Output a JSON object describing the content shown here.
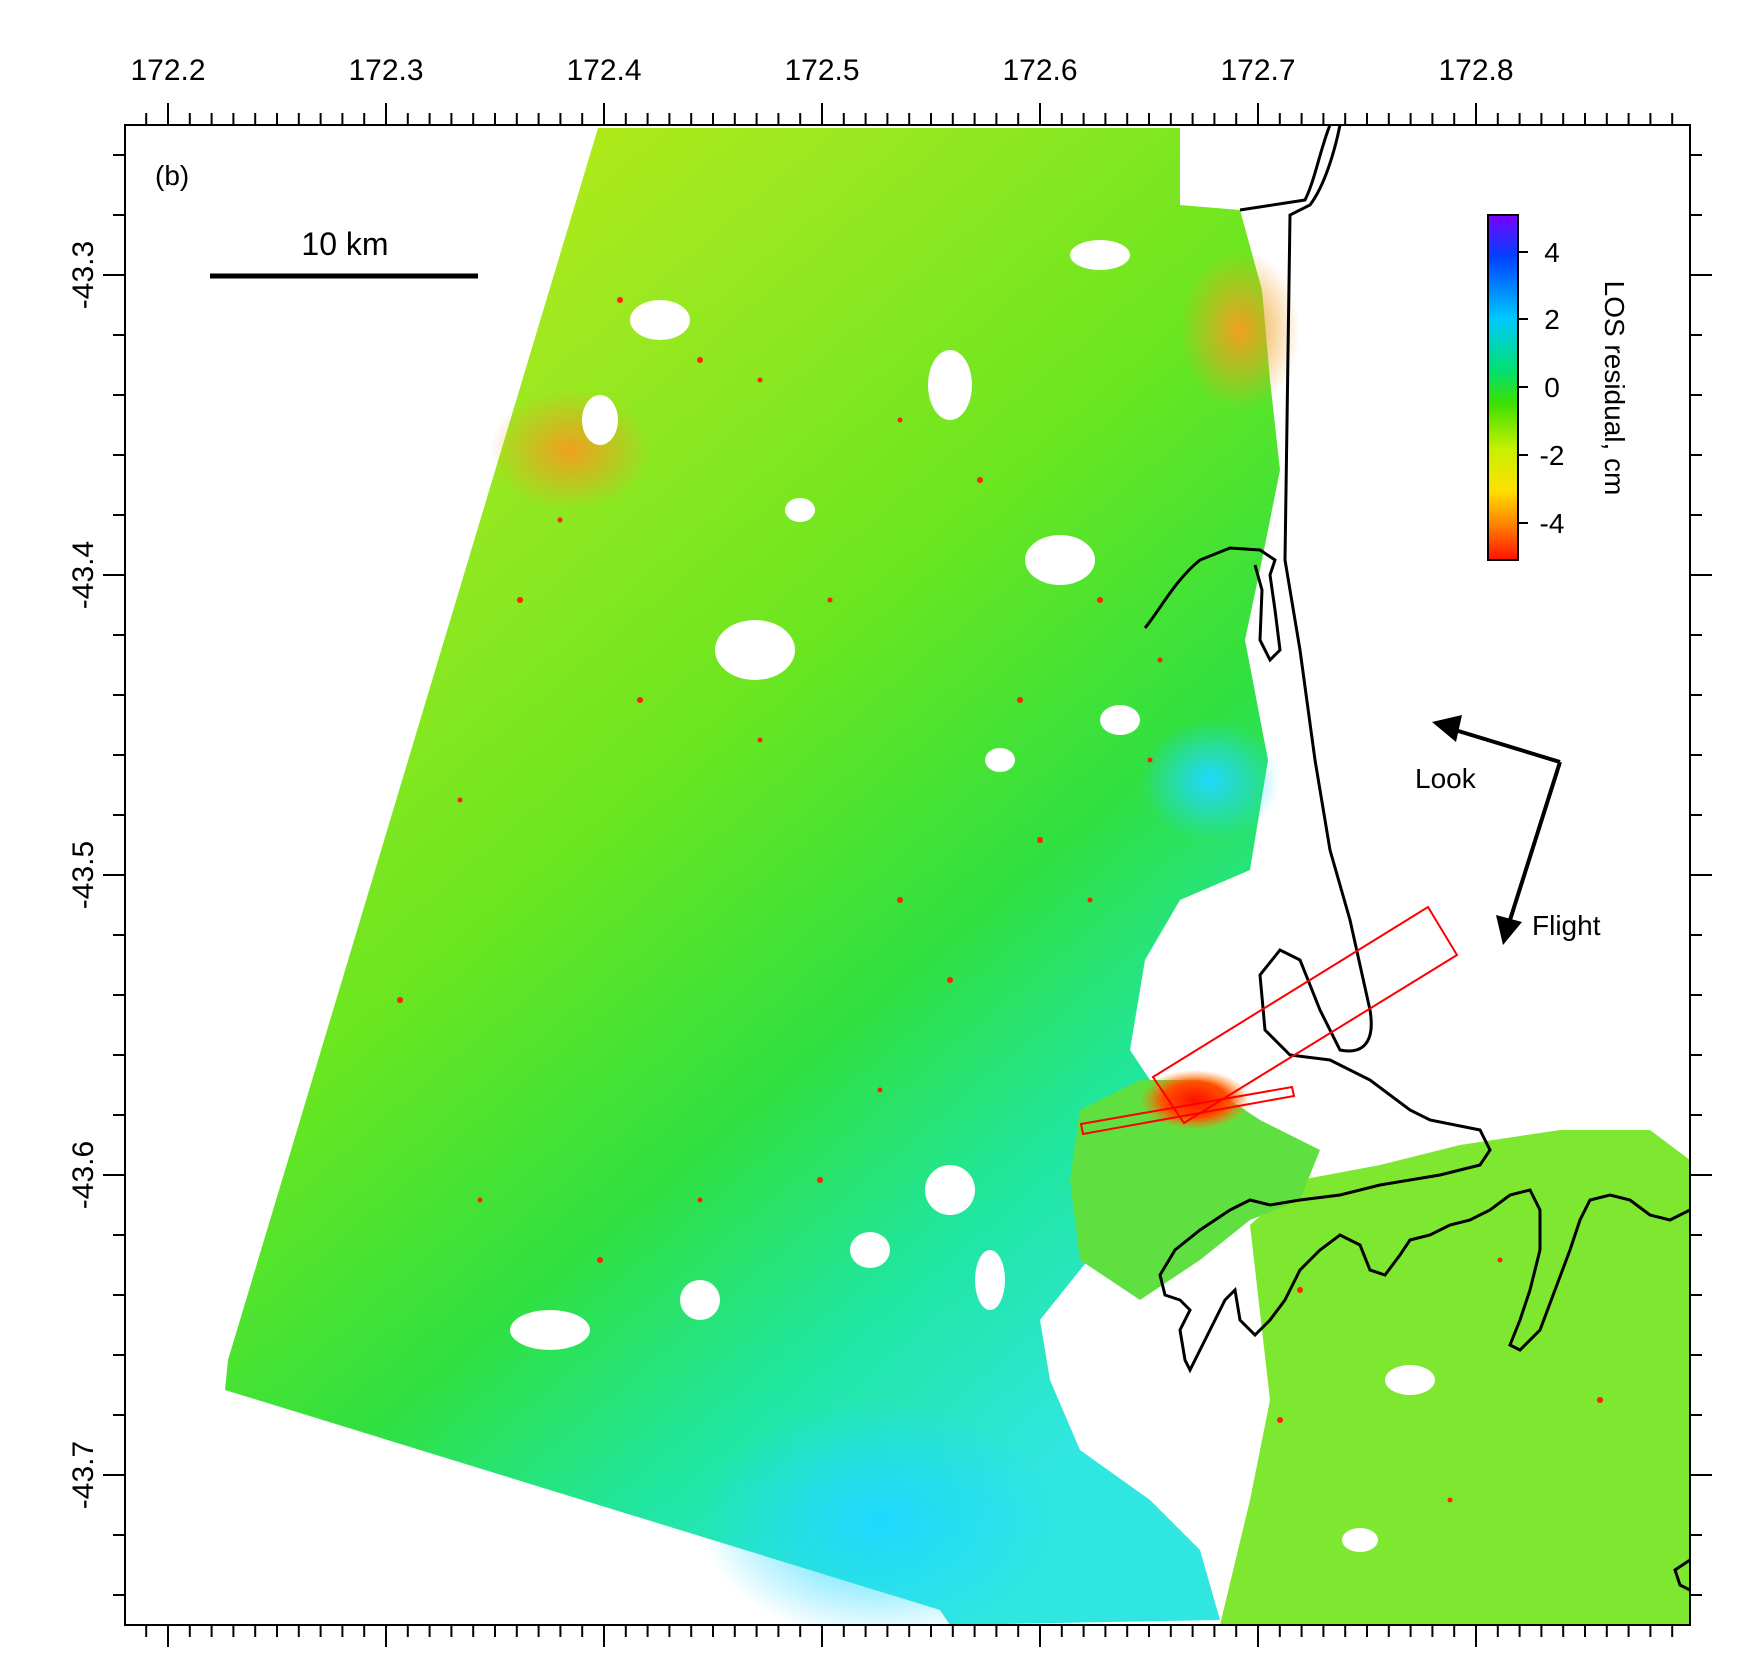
{
  "panel_label": "(b)",
  "scale_bar": {
    "label": "10 km"
  },
  "lon_ticks": [
    "172.2",
    "172.3",
    "172.4",
    "172.5",
    "172.6",
    "172.7",
    "172.8"
  ],
  "lat_ticks": [
    "-43.3",
    "-43.4",
    "-43.5",
    "-43.6",
    "-43.7"
  ],
  "colorbar": {
    "title": "LOS residual, cm",
    "ticks": [
      "4",
      "2",
      "0",
      "-2",
      "-4"
    ],
    "colors": [
      "#7a00ff",
      "#0040ff",
      "#00c8ff",
      "#00e070",
      "#40e000",
      "#c8f000",
      "#ffe000",
      "#ff8000",
      "#ff1000"
    ]
  },
  "arrows": {
    "look": "Look",
    "flight": "Flight"
  },
  "chart_data": {
    "type": "heatmap",
    "title": "",
    "xlabel": "",
    "ylabel": "",
    "x_ticks": [
      172.2,
      172.3,
      172.4,
      172.5,
      172.6,
      172.7,
      172.8
    ],
    "y_ticks": [
      -43.3,
      -43.4,
      -43.5,
      -43.6,
      -43.7
    ],
    "xlim": [
      172.18,
      172.89
    ],
    "ylim": [
      -43.75,
      -43.25
    ],
    "colorbar_range_cm": [
      -5,
      5
    ],
    "colorbar_label": "LOS residual, cm"
  }
}
